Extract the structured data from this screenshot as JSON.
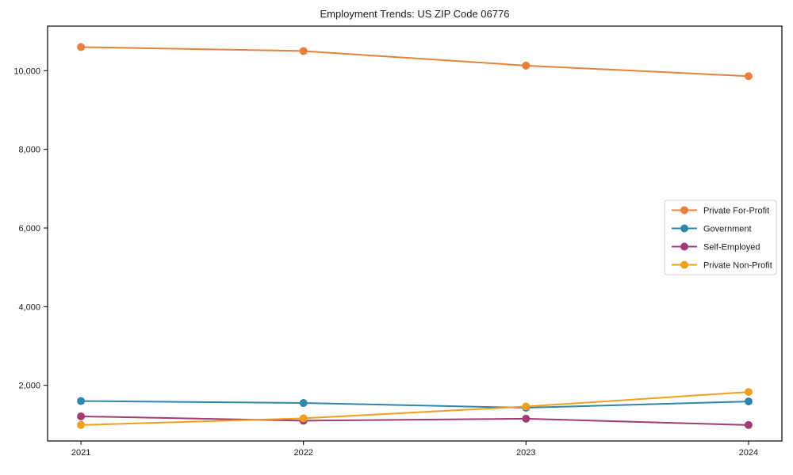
{
  "figure": {
    "title": "Employment Trends: US ZIP Code 06776"
  },
  "chart_data": {
    "type": "line",
    "title": "Employment Trends: US ZIP Code 06776",
    "categories": [
      "2021",
      "2022",
      "2023",
      "2024"
    ],
    "series": [
      {
        "name": "Private For-Profit",
        "color": "#e8803c",
        "values": [
          10600,
          10500,
          10130,
          9860
        ]
      },
      {
        "name": "Government",
        "color": "#2e86ab",
        "values": [
          1600,
          1550,
          1430,
          1590
        ]
      },
      {
        "name": "Self-Employed",
        "color": "#a23b72",
        "values": [
          1210,
          1100,
          1150,
          990
        ]
      },
      {
        "name": "Private Non-Profit",
        "color": "#f09e1e",
        "values": [
          990,
          1160,
          1460,
          1830
        ]
      }
    ],
    "xlabel": "",
    "ylabel": "",
    "yticks": [
      2000,
      4000,
      6000,
      8000,
      10000
    ],
    "ytick_labels": [
      "2,000",
      "4,000",
      "6,000",
      "8,000",
      "10,000"
    ],
    "ylim": [
      585,
      11133
    ],
    "xlim_index": [
      -0.15,
      3.15
    ],
    "grid": false,
    "marker": "o",
    "legend_position": "center right",
    "spine_color": "#000000",
    "tick_label_color": "#1a1a1a",
    "legend_border_color": "#cccccc",
    "background_color": "#ffffff"
  }
}
